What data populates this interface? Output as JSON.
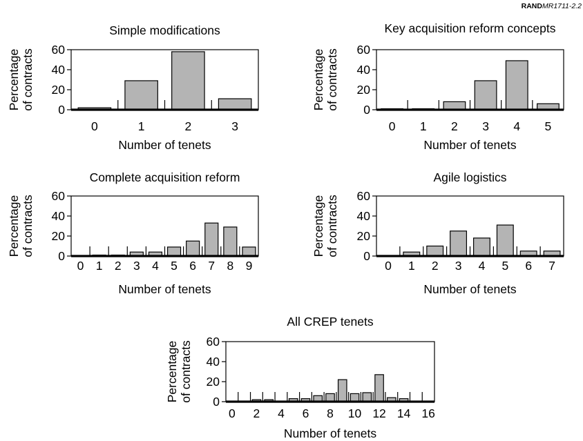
{
  "figure_id": {
    "bold": "RAND",
    "italic": "MR1711-2.2"
  },
  "y_label_lines": [
    "Percentage",
    "of contracts"
  ],
  "x_label": "Number of tenets",
  "chart_data": [
    {
      "type": "bar",
      "title": "Simple modifications",
      "xlabel": "Number of tenets",
      "ylabel": "Percentage of contracts",
      "ylim": [
        0,
        60
      ],
      "yticks": [
        0,
        20,
        40,
        60
      ],
      "categories": [
        "0",
        "1",
        "2",
        "3"
      ],
      "values": [
        2,
        29,
        58,
        11
      ]
    },
    {
      "type": "bar",
      "title": "Key acquisition reform concepts",
      "xlabel": "Number of tenets",
      "ylabel": "Percentage of contracts",
      "ylim": [
        0,
        60
      ],
      "yticks": [
        0,
        20,
        40,
        60
      ],
      "categories": [
        "0",
        "1",
        "2",
        "3",
        "4",
        "5"
      ],
      "values": [
        1,
        1,
        8,
        29,
        49,
        6
      ]
    },
    {
      "type": "bar",
      "title": "Complete acquisition reform",
      "xlabel": "Number of tenets",
      "ylabel": "Percentage of contracts",
      "ylim": [
        0,
        60
      ],
      "yticks": [
        0,
        20,
        40,
        60
      ],
      "categories": [
        "0",
        "1",
        "2",
        "3",
        "4",
        "5",
        "6",
        "7",
        "8",
        "9"
      ],
      "values": [
        0,
        1,
        1,
        4,
        4,
        9,
        15,
        33,
        29,
        9
      ]
    },
    {
      "type": "bar",
      "title": "Agile logistics",
      "xlabel": "Number of tenets",
      "ylabel": "Percentage of contracts",
      "ylim": [
        0,
        60
      ],
      "yticks": [
        0,
        20,
        40,
        60
      ],
      "categories": [
        "0",
        "1",
        "2",
        "3",
        "4",
        "5",
        "6",
        "7"
      ],
      "values": [
        0,
        4,
        10,
        25,
        18,
        31,
        5,
        5
      ]
    },
    {
      "type": "bar",
      "title": "All CREP tenets",
      "xlabel": "Number of tenets",
      "ylabel": "Percentage of contracts",
      "ylim": [
        0,
        60
      ],
      "yticks": [
        0,
        20,
        40,
        60
      ],
      "categories": [
        "0",
        "1",
        "2",
        "3",
        "4",
        "5",
        "6",
        "7",
        "8",
        "9",
        "10",
        "11",
        "12",
        "13",
        "14",
        "15",
        "16"
      ],
      "xtick_labels": [
        "0",
        "",
        "2",
        "",
        "4",
        "",
        "6",
        "",
        "8",
        "",
        "10",
        "",
        "12",
        "",
        "14",
        "",
        "16"
      ],
      "values": [
        0,
        0,
        2,
        2,
        0,
        3,
        3,
        6,
        8,
        22,
        8,
        9,
        27,
        4,
        3,
        0,
        0
      ]
    }
  ]
}
